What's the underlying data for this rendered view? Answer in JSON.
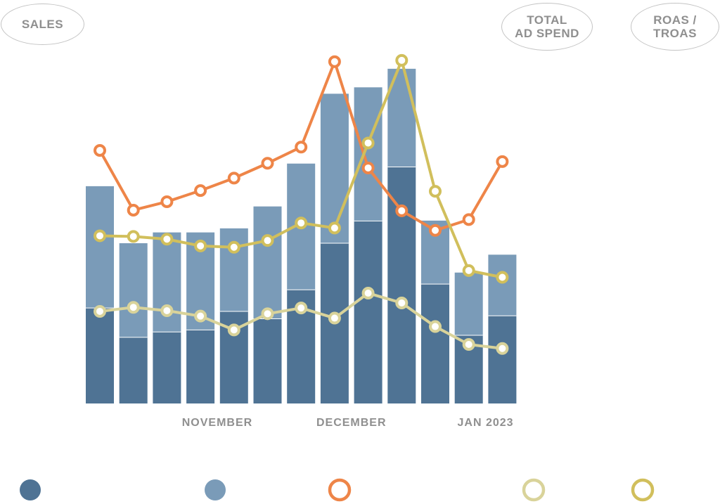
{
  "pills": {
    "sales": [
      "SALES"
    ],
    "total_ad_spend": [
      "TOTAL",
      "AD SPEND"
    ],
    "roas": [
      "ROAS /",
      "TROAS"
    ]
  },
  "colors": {
    "series_dark_blue": "#4f7394",
    "series_light_blue": "#7a9bb8",
    "series_orange": "#ee8548",
    "series_pale_yellow": "#d9d39a",
    "series_yellow": "#d1bf5c"
  },
  "chart_data": {
    "type": "bar",
    "stacked": true,
    "x_tick_labels": [
      "NOVEMBER",
      "DECEMBER",
      "JAN 2023"
    ],
    "x_tick_positions": [
      3.5,
      7.5,
      11.5
    ],
    "ylim": [
      0,
      100
    ],
    "series": [
      {
        "kind": "bar",
        "color": "#4f7394",
        "values": [
          28.3,
          19.6,
          21.2,
          21.8,
          27.3,
          25.1,
          33.7,
          47.5,
          54.1,
          70.1,
          35.4,
          20.2,
          26.0
        ]
      },
      {
        "kind": "bar",
        "color": "#7a9bb8",
        "values": [
          36.1,
          27.9,
          29.5,
          28.9,
          24.6,
          33.3,
          37.4,
          44.3,
          39.6,
          29.1,
          18.8,
          18.6,
          18.1
        ]
      },
      {
        "kind": "line",
        "color": "#ee8548",
        "values": [
          75.0,
          57.3,
          59.8,
          63.1,
          66.8,
          71.2,
          76.0,
          101.3,
          69.8,
          57.1,
          51.3,
          54.5,
          71.7
        ]
      },
      {
        "kind": "line",
        "color": "#d9d39a",
        "values": [
          27.3,
          28.5,
          27.5,
          25.9,
          21.8,
          26.6,
          28.3,
          25.3,
          32.7,
          29.8,
          22.8,
          17.5,
          16.3
        ]
      },
      {
        "kind": "line",
        "color": "#d1bf5c",
        "values": [
          49.7,
          49.5,
          48.7,
          46.7,
          46.3,
          48.3,
          53.5,
          52.0,
          77.2,
          101.7,
          62.9,
          39.4,
          37.4
        ]
      }
    ]
  },
  "legend": [
    {
      "marker": "filled",
      "color": "#4f7394"
    },
    {
      "marker": "filled",
      "color": "#7a9bb8"
    },
    {
      "marker": "ring",
      "color": "#ee8548"
    },
    {
      "marker": "ring",
      "color": "#d9d39a"
    },
    {
      "marker": "ring",
      "color": "#d1bf5c"
    }
  ]
}
